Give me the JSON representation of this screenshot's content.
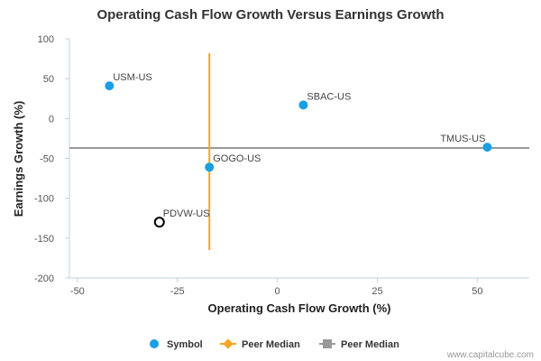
{
  "chart_data": {
    "type": "scatter",
    "title": "Operating Cash Flow Growth Versus Earnings Growth",
    "xlabel": "Operating Cash Flow Growth (%)",
    "ylabel": "Earnings Growth (%)",
    "xlim": [
      -52,
      63
    ],
    "ylim": [
      -200,
      100
    ],
    "xticks": [
      -50,
      -25,
      0,
      25,
      50
    ],
    "xtick_labels": [
      "-50",
      "-25",
      "0",
      "25",
      "50"
    ],
    "yticks": [
      100,
      50,
      0,
      -50,
      -100,
      -150,
      -200
    ],
    "ytick_labels": [
      "100",
      "50",
      "0",
      "-50",
      "-100",
      "-150",
      "-200"
    ],
    "grid": false,
    "points": [
      {
        "label": "USM-US",
        "x": -42,
        "y": 41,
        "style": "filled"
      },
      {
        "label": "SBAC-US",
        "x": 6.5,
        "y": 17,
        "style": "filled"
      },
      {
        "label": "TMUS-US",
        "x": 52.5,
        "y": -36,
        "style": "filled"
      },
      {
        "label": "GOGO-US",
        "x": -17,
        "y": -61,
        "style": "filled"
      },
      {
        "label": "PDVW-US",
        "x": -29.5,
        "y": -130,
        "style": "hollow"
      }
    ],
    "peer_median_x": {
      "value": -17,
      "y_from": 82,
      "y_to": -165
    },
    "peer_median_y": {
      "value": -37
    },
    "legend": [
      {
        "label": "Symbol",
        "marker": "circle",
        "color": "#1a9ee4"
      },
      {
        "label": "Peer Median",
        "marker": "diamond-line",
        "color": "#f5a623"
      },
      {
        "label": "Peer Median",
        "marker": "square-line",
        "color": "#999999"
      }
    ],
    "legend_position": "bottom-center",
    "colors": {
      "point": "#1a9ee4",
      "highlight_stroke": "#000000",
      "median_vertical": "#f5a623",
      "median_horizontal": "#999999",
      "axis": "#c0d0e0"
    }
  },
  "credit": "www.capitalcube.com"
}
